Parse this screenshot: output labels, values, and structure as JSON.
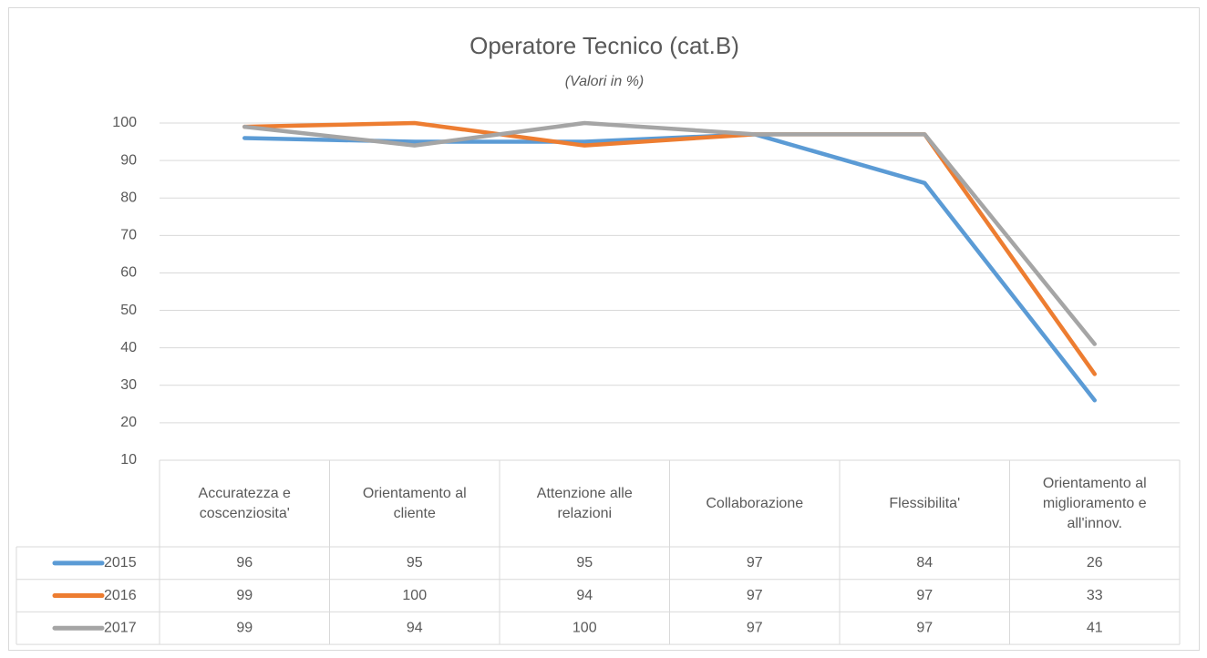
{
  "chart_data": {
    "type": "line",
    "title": "Operatore Tecnico (cat.B)",
    "subtitle": "(Valori in %)",
    "categories": [
      "Accuratezza e coscenziosita'",
      "Orientamento al cliente",
      "Attenzione alle relazioni",
      "Collaborazione",
      "Flessibilita'",
      "Orientamento al miglioramento e all'innov."
    ],
    "series": [
      {
        "name": "2015",
        "color": "#5b9bd5",
        "values": [
          96,
          95,
          95,
          97,
          84,
          26
        ]
      },
      {
        "name": "2016",
        "color": "#ed7d31",
        "values": [
          99,
          100,
          94,
          97,
          97,
          33
        ]
      },
      {
        "name": "2017",
        "color": "#a5a5a5",
        "values": [
          99,
          94,
          100,
          97,
          97,
          41
        ]
      }
    ],
    "ylim": [
      10,
      100
    ],
    "yticks": [
      10,
      20,
      30,
      40,
      50,
      60,
      70,
      80,
      90,
      100
    ],
    "grid": true
  }
}
